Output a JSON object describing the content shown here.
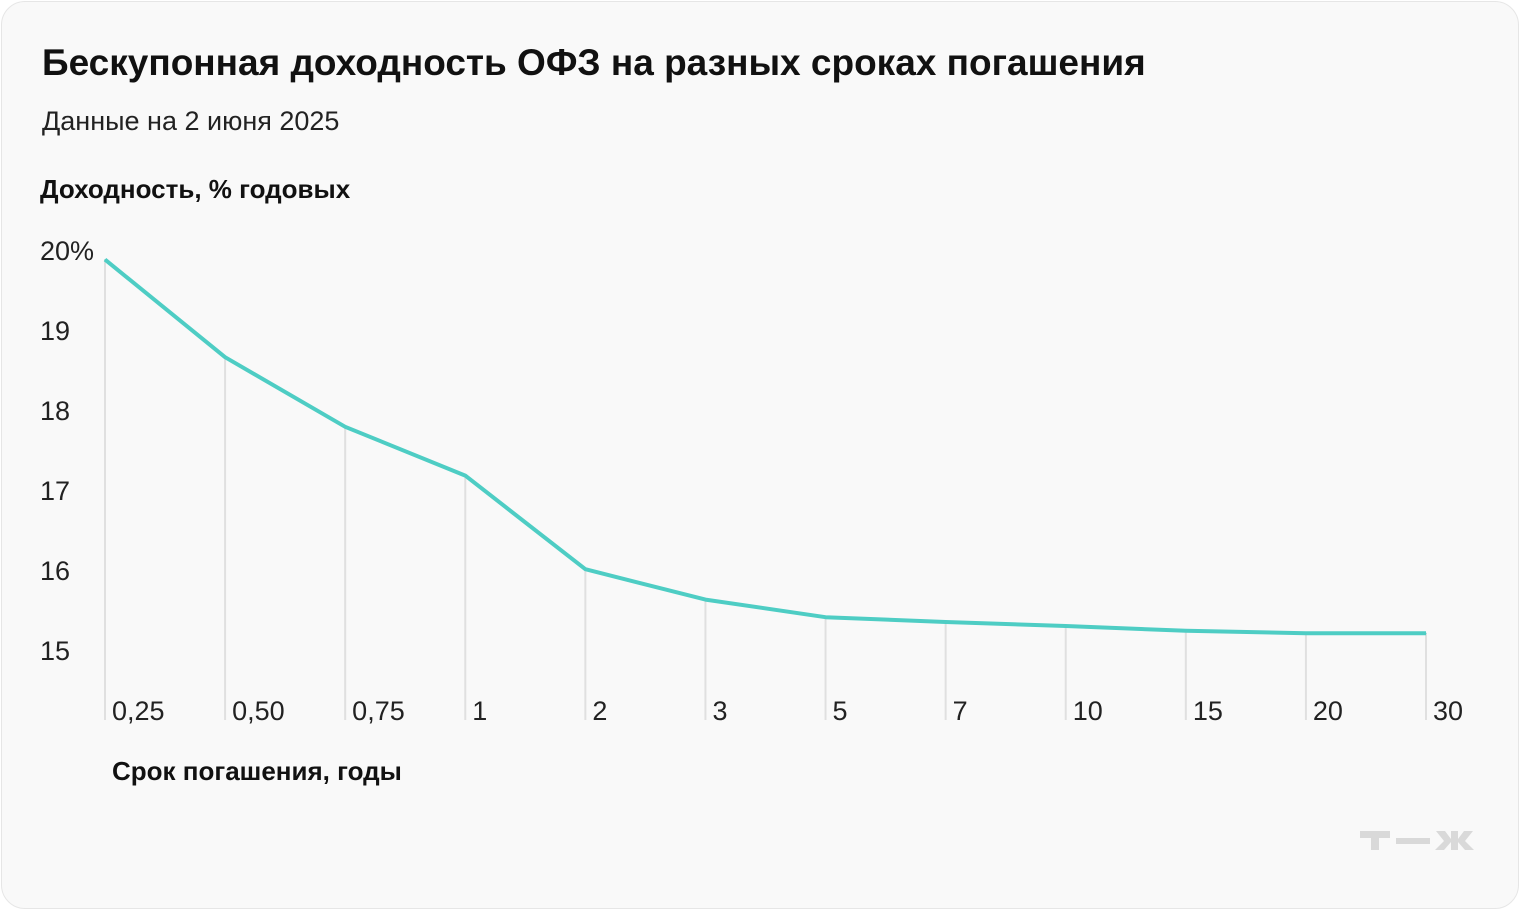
{
  "title": "Бескупонная доходность ОФЗ на разных сроках погашения",
  "subtitle": "Данные на 2 июня 2025",
  "logo": "т—ж",
  "chart_data": {
    "type": "line",
    "title": "Бескупонная доходность ОФЗ на разных сроках погашения",
    "subtitle": "Данные на 2 июня 2025",
    "ylabel": "Доходность, % годовых",
    "xlabel": "Срок погашения, годы",
    "categories": [
      "0,25",
      "0,50",
      "0,75",
      "1",
      "2",
      "3",
      "5",
      "7",
      "10",
      "15",
      "20",
      "30"
    ],
    "values": [
      19.88,
      18.66,
      17.79,
      17.18,
      16.01,
      15.63,
      15.41,
      15.35,
      15.3,
      15.24,
      15.21,
      15.21
    ],
    "yticks": [
      "20%",
      "19",
      "18",
      "17",
      "16",
      "15"
    ],
    "ytick_values": [
      20,
      19,
      18,
      17,
      16,
      15
    ],
    "ylim": [
      15,
      20
    ],
    "grid": "vertical lines at each category",
    "line_color": "#4ecdc4",
    "grid_color": "#e0e0e0"
  }
}
